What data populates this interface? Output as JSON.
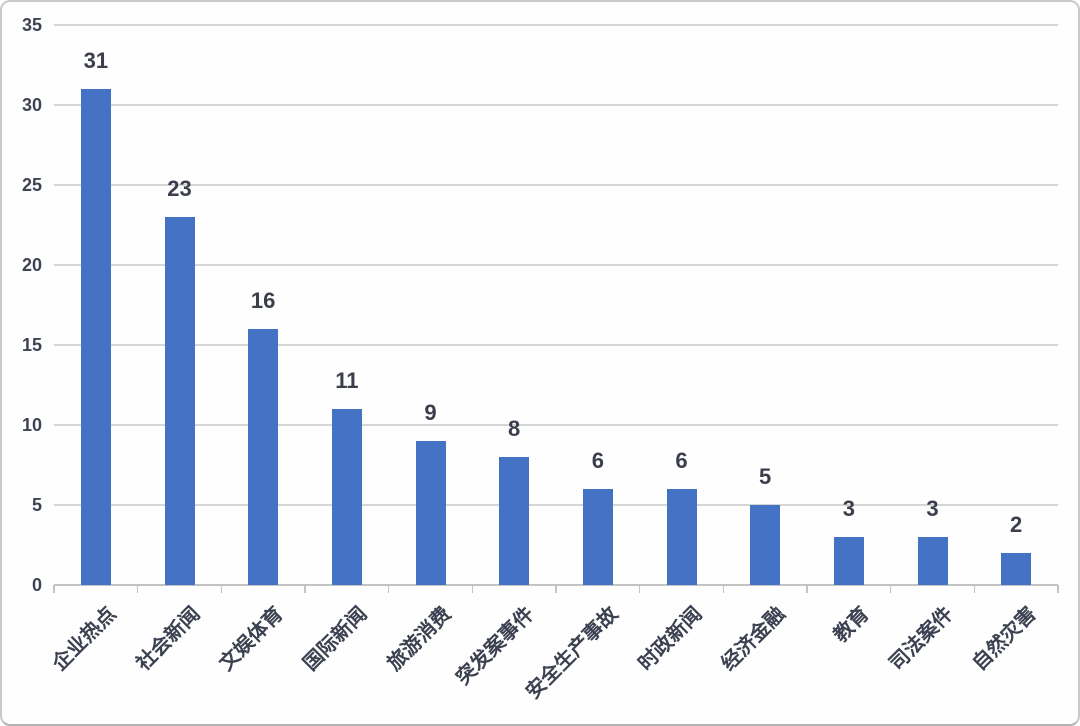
{
  "chart_data": {
    "type": "bar",
    "title": "",
    "categories": [
      "企业热点",
      "社会新闻",
      "文娱体育",
      "国际新闻",
      "旅游消费",
      "突发案事件",
      "安全生产事故",
      "时政新闻",
      "经济金融",
      "教育",
      "司法案件",
      "自然灾害"
    ],
    "values": [
      31,
      23,
      16,
      11,
      9,
      8,
      6,
      6,
      5,
      3,
      3,
      2
    ],
    "xlabel": "",
    "ylabel": "",
    "ylim": [
      0,
      35
    ],
    "ytick_step": 5,
    "ytick_labels": [
      "0",
      "5",
      "10",
      "15",
      "20",
      "25",
      "30",
      "35"
    ],
    "grid": true,
    "legend": false,
    "bar_color": "#4472C4",
    "value_label_color": "#3a3f4b",
    "axis_label_color": "#3b4150",
    "gridline_color": "#d6d6d6",
    "axis_line_color": "#c3c3c3",
    "background_color": "#fefefe"
  }
}
